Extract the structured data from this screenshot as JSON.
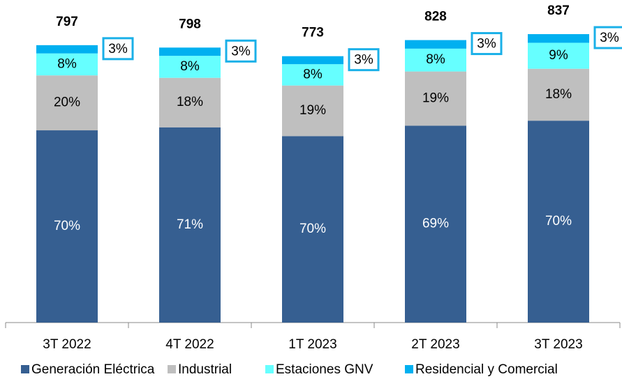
{
  "chart_data": {
    "type": "bar",
    "categories": [
      "3T 2022",
      "4T 2022",
      "1T 2023",
      "2T 2023",
      "3T 2023"
    ],
    "totals": [
      797,
      798,
      773,
      828,
      837
    ],
    "series": [
      {
        "name": "Generación Eléctrica",
        "color": "#365f91",
        "values": [
          70,
          71,
          70,
          69,
          70
        ],
        "value_labels": [
          "70%",
          "71%",
          "70%",
          "69%",
          "70%"
        ]
      },
      {
        "name": "Industrial",
        "color": "#bfbfbf",
        "values": [
          20,
          18,
          19,
          19,
          18
        ],
        "value_labels": [
          "20%",
          "18%",
          "19%",
          "19%",
          "18%"
        ]
      },
      {
        "name": "Estaciones GNV",
        "color": "#66ffff",
        "values": [
          8,
          8,
          8,
          8,
          9
        ],
        "value_labels": [
          "8%",
          "8%",
          "8%",
          "8%",
          "9%"
        ]
      },
      {
        "name": "Residencial y Comercial",
        "color": "#00b0f0",
        "values": [
          3,
          3,
          3,
          3,
          3
        ],
        "value_labels": [
          "3%",
          "3%",
          "3%",
          "3%",
          "3%"
        ]
      }
    ],
    "legend": "bottom"
  }
}
